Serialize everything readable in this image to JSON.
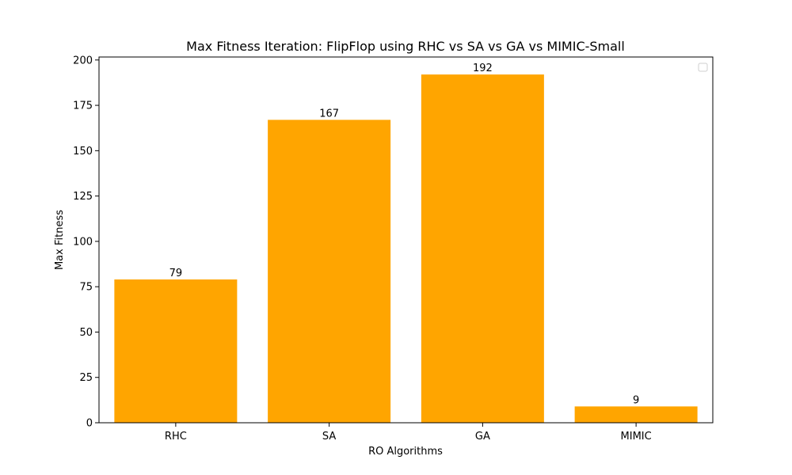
{
  "chart_data": {
    "type": "bar",
    "title": "Max Fitness Iteration: FlipFlop using RHC vs SA vs GA vs MIMIC-Small",
    "xlabel": "RO Algorithms",
    "ylabel": "Max Fitness",
    "categories": [
      "RHC",
      "SA",
      "GA",
      "MIMIC"
    ],
    "values": [
      79,
      167,
      192,
      9
    ],
    "data_labels": [
      "79",
      "167",
      "192",
      "9"
    ],
    "y_ticks": [
      0,
      25,
      50,
      75,
      100,
      125,
      150,
      175,
      200
    ],
    "ylim": [
      0,
      201.65
    ],
    "grid": false,
    "legend": {
      "placement": "top-right",
      "entries": []
    },
    "colors": {
      "bar": "#ffa500",
      "axis": "#000000",
      "background": "#ffffff"
    }
  }
}
